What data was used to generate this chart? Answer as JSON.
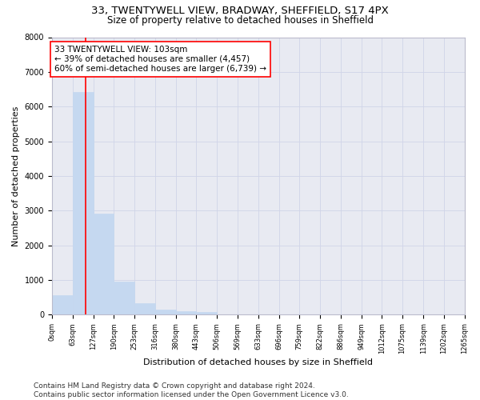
{
  "title_line1": "33, TWENTYWELL VIEW, BRADWAY, SHEFFIELD, S17 4PX",
  "title_line2": "Size of property relative to detached houses in Sheffield",
  "xlabel": "Distribution of detached houses by size in Sheffield",
  "ylabel": "Number of detached properties",
  "bar_edges": [
    0,
    63,
    127,
    190,
    253,
    316,
    380,
    443,
    506,
    569,
    633,
    696,
    759,
    822,
    886,
    949,
    1012,
    1075,
    1139,
    1202,
    1265
  ],
  "bar_heights": [
    550,
    6430,
    2920,
    960,
    330,
    150,
    100,
    70,
    0,
    0,
    0,
    0,
    0,
    0,
    0,
    0,
    0,
    0,
    0,
    0
  ],
  "bar_color": "#c5d8f0",
  "bar_edgecolor": "#c5d8f0",
  "grid_color": "#d0d4e8",
  "background_color": "#e8eaf2",
  "vline_x": 103,
  "vline_color": "red",
  "annotation_text": "33 TWENTYWELL VIEW: 103sqm\n← 39% of detached houses are smaller (4,457)\n60% of semi-detached houses are larger (6,739) →",
  "annotation_box_color": "white",
  "annotation_box_edgecolor": "red",
  "annotation_fontsize": 7.5,
  "ylim": [
    0,
    8000
  ],
  "yticks": [
    0,
    1000,
    2000,
    3000,
    4000,
    5000,
    6000,
    7000,
    8000
  ],
  "tick_labels": [
    "0sqm",
    "63sqm",
    "127sqm",
    "190sqm",
    "253sqm",
    "316sqm",
    "380sqm",
    "443sqm",
    "506sqm",
    "569sqm",
    "633sqm",
    "696sqm",
    "759sqm",
    "822sqm",
    "886sqm",
    "949sqm",
    "1012sqm",
    "1075sqm",
    "1139sqm",
    "1202sqm",
    "1265sqm"
  ],
  "footer_text": "Contains HM Land Registry data © Crown copyright and database right 2024.\nContains public sector information licensed under the Open Government Licence v3.0.",
  "title_fontsize": 9.5,
  "subtitle_fontsize": 8.5,
  "xlabel_fontsize": 8,
  "ylabel_fontsize": 8,
  "tick_fontsize": 6,
  "ytick_fontsize": 7,
  "footer_fontsize": 6.5
}
